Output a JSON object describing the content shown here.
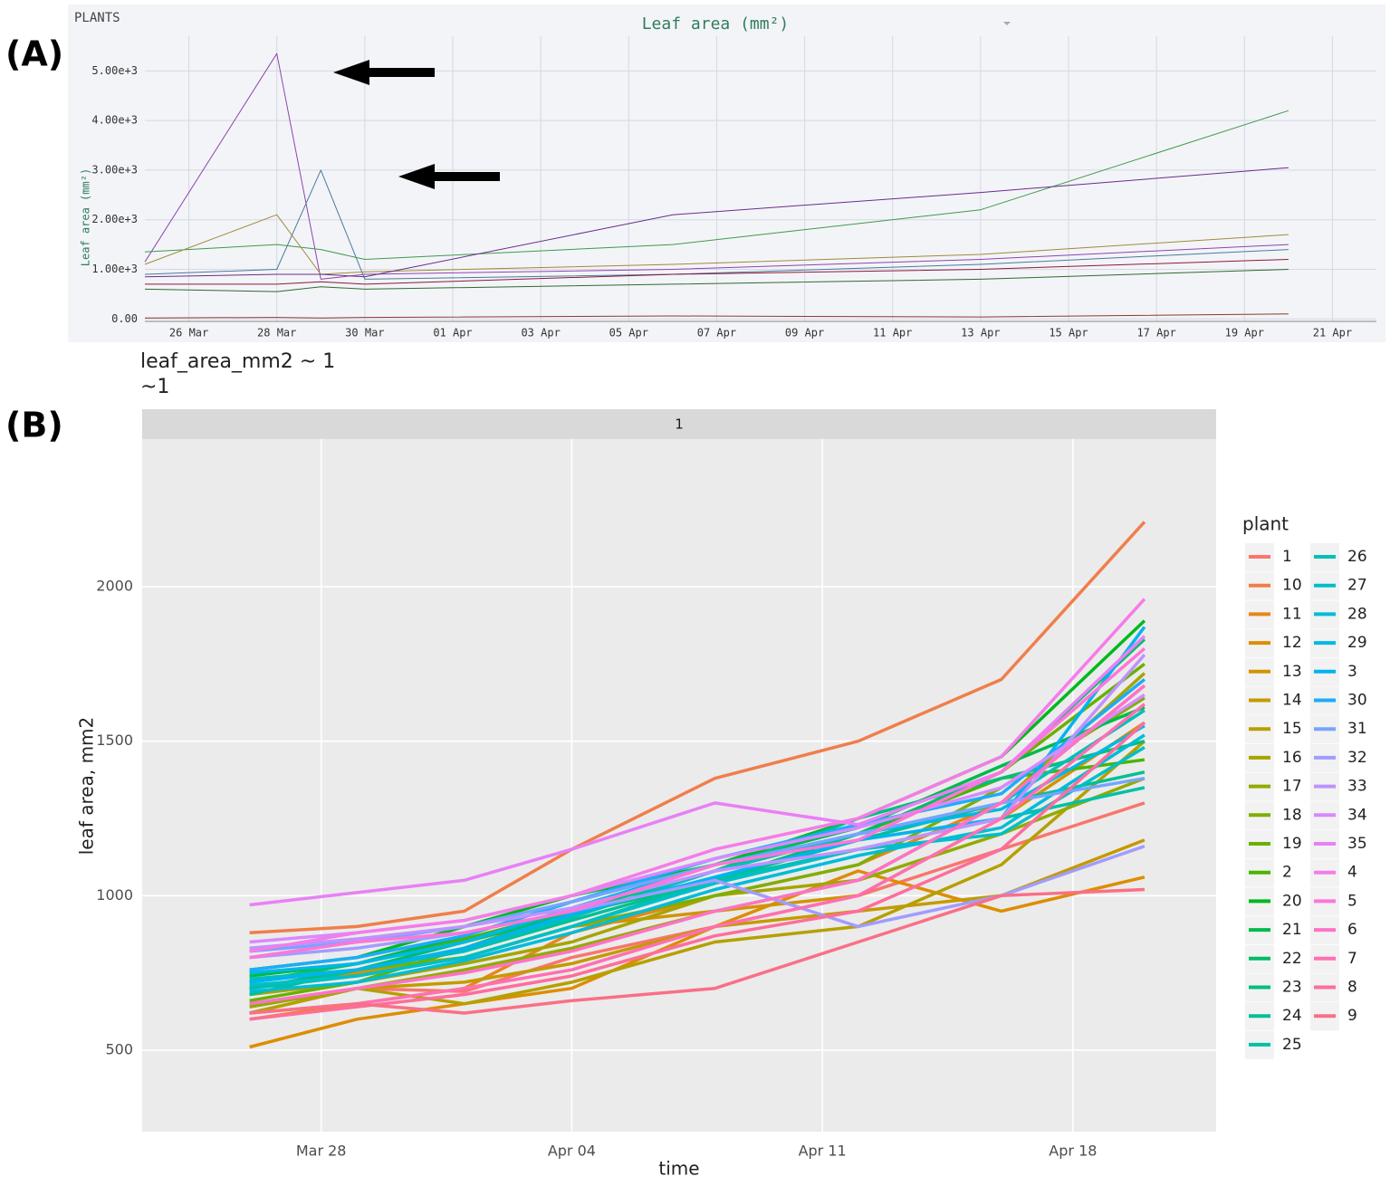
{
  "chart_data": [
    {
      "type": "line",
      "panel_label": "(A)",
      "selector_label": "PLANTS",
      "title": "Leaf area (mm²)",
      "y_label": "Leaf area (mm²)",
      "x": [
        "25 Mar",
        "28 Mar",
        "29 Mar",
        "30 Mar",
        "06 Apr",
        "13 Apr",
        "20 Apr"
      ],
      "xlim": [
        "25 Mar",
        "22 Apr"
      ],
      "xticks": [
        "26 Mar",
        "28 Mar",
        "30 Mar",
        "01 Apr",
        "03 Apr",
        "05 Apr",
        "07 Apr",
        "09 Apr",
        "11 Apr",
        "13 Apr",
        "15 Apr",
        "17 Apr",
        "19 Apr",
        "21 Apr"
      ],
      "ylim": [
        -50,
        5700
      ],
      "yticks": [
        {
          "value": 0,
          "label": "0.00"
        },
        {
          "value": 1000,
          "label": "1.00e+3"
        },
        {
          "value": 2000,
          "label": "2.00e+3"
        },
        {
          "value": 3000,
          "label": "3.00e+3"
        },
        {
          "value": 4000,
          "label": "4.00e+3"
        },
        {
          "value": 5000,
          "label": "5.00e+3"
        }
      ],
      "grid": true,
      "series": [
        {
          "color": "#8e44ad",
          "values": [
            1150,
            5350,
            800,
            900,
            1000,
            1200,
            1500
          ]
        },
        {
          "color": "#4a7a9b",
          "values": [
            900,
            1000,
            3000,
            800,
            900,
            1100,
            1400
          ]
        },
        {
          "color": "#3f9a4a",
          "values": [
            1350,
            1500,
            1400,
            1200,
            1500,
            2200,
            4200
          ]
        },
        {
          "color": "#a08a3a",
          "values": [
            1100,
            2100,
            900,
            950,
            1100,
            1300,
            1700
          ]
        },
        {
          "color": "#8b1a3a",
          "values": [
            700,
            700,
            750,
            700,
            900,
            1000,
            1200
          ]
        },
        {
          "color": "#2e6b2e",
          "values": [
            600,
            550,
            650,
            600,
            700,
            800,
            1000
          ]
        },
        {
          "color": "#6a2c8c",
          "values": [
            850,
            900,
            900,
            850,
            2100,
            2550,
            3050
          ]
        },
        {
          "color": "#8b3a2a",
          "values": [
            20,
            30,
            20,
            30,
            60,
            40,
            100
          ]
        }
      ]
    },
    {
      "type": "line",
      "panel_label": "(B)",
      "title": "leaf_area_mm2 ~ 1",
      "subtitle": "~1",
      "facet": "1",
      "x_label": "time",
      "y_label": "leaf area, mm2",
      "legend_title": "plant",
      "x": [
        "Mar 26",
        "Mar 29",
        "Apr 01",
        "Apr 04",
        "Apr 08",
        "Apr 12",
        "Apr 16",
        "Apr 20"
      ],
      "xlim": [
        "Mar 23",
        "Apr 22"
      ],
      "xticks": [
        "Mar 28",
        "Apr 04",
        "Apr 11",
        "Apr 18"
      ],
      "ylim": [
        236,
        2478
      ],
      "yticks": [
        500,
        1000,
        1500,
        2000
      ],
      "grid": true,
      "series": [
        {
          "name": "1",
          "color": "#F8766D",
          "values": [
            620,
            700,
            690,
            800,
            900,
            1000,
            1150,
            1300
          ]
        },
        {
          "name": "10",
          "color": "#F07E4B",
          "values": [
            880,
            900,
            950,
            1150,
            1380,
            1500,
            1700,
            2210
          ]
        },
        {
          "name": "11",
          "color": "#E7861B",
          "values": [
            600,
            650,
            700,
            880,
            1000,
            1100,
            1300,
            1680
          ]
        },
        {
          "name": "12",
          "color": "#DD8D00",
          "values": [
            510,
            600,
            650,
            700,
            900,
            1080,
            950,
            1060
          ]
        },
        {
          "name": "13",
          "color": "#D19400",
          "values": [
            700,
            750,
            800,
            900,
            950,
            1000,
            1250,
            1560
          ]
        },
        {
          "name": "14",
          "color": "#C49A00",
          "values": [
            650,
            700,
            720,
            780,
            900,
            950,
            1000,
            1180
          ]
        },
        {
          "name": "15",
          "color": "#B5A000",
          "values": [
            620,
            700,
            650,
            720,
            850,
            900,
            1100,
            1500
          ]
        },
        {
          "name": "16",
          "color": "#A5A500",
          "values": [
            680,
            720,
            780,
            850,
            1000,
            1050,
            1300,
            1720
          ]
        },
        {
          "name": "17",
          "color": "#93AA00",
          "values": [
            640,
            700,
            760,
            830,
            950,
            1050,
            1200,
            1380
          ]
        },
        {
          "name": "18",
          "color": "#7FAE00",
          "values": [
            700,
            760,
            800,
            900,
            1000,
            1100,
            1350,
            1640
          ]
        },
        {
          "name": "19",
          "color": "#68B100",
          "values": [
            660,
            720,
            830,
            950,
            1050,
            1200,
            1400,
            1750
          ]
        },
        {
          "name": "2",
          "color": "#49B500",
          "values": [
            720,
            780,
            860,
            950,
            1080,
            1200,
            1380,
            1440
          ]
        },
        {
          "name": "20",
          "color": "#00B81F",
          "values": [
            760,
            800,
            900,
            1000,
            1100,
            1250,
            1450,
            1890
          ]
        },
        {
          "name": "21",
          "color": "#00BA4A",
          "values": [
            740,
            780,
            870,
            980,
            1100,
            1220,
            1420,
            1610
          ]
        },
        {
          "name": "22",
          "color": "#00BC66",
          "values": [
            700,
            760,
            850,
            940,
            1050,
            1200,
            1400,
            1830
          ]
        },
        {
          "name": "23",
          "color": "#00BE7D",
          "values": [
            720,
            780,
            850,
            950,
            1080,
            1250,
            1380,
            1500
          ]
        },
        {
          "name": "24",
          "color": "#00C092",
          "values": [
            680,
            760,
            820,
            920,
            1050,
            1180,
            1300,
            1400
          ]
        },
        {
          "name": "25",
          "color": "#00C0A6",
          "values": [
            700,
            740,
            800,
            900,
            1050,
            1150,
            1250,
            1350
          ]
        },
        {
          "name": "26",
          "color": "#00C0B8",
          "values": [
            730,
            760,
            820,
            930,
            1080,
            1200,
            1300,
            1600
          ]
        },
        {
          "name": "27",
          "color": "#00BFC9",
          "values": [
            710,
            740,
            800,
            900,
            1040,
            1150,
            1200,
            1480
          ]
        },
        {
          "name": "28",
          "color": "#00BCD8",
          "values": [
            690,
            720,
            790,
            880,
            1020,
            1130,
            1220,
            1520
          ]
        },
        {
          "name": "29",
          "color": "#00B8E5",
          "values": [
            750,
            780,
            850,
            960,
            1100,
            1200,
            1280,
            1550
          ]
        },
        {
          "name": "3",
          "color": "#00B3F1",
          "values": [
            720,
            760,
            830,
            940,
            1060,
            1180,
            1250,
            1870
          ]
        },
        {
          "name": "30",
          "color": "#1CACFA",
          "values": [
            760,
            800,
            870,
            980,
            1120,
            1230,
            1330,
            1700
          ]
        },
        {
          "name": "31",
          "color": "#77A4FF",
          "values": [
            820,
            850,
            900,
            980,
            1100,
            1200,
            1300,
            1380
          ]
        },
        {
          "name": "32",
          "color": "#A19CFF",
          "values": [
            800,
            830,
            880,
            950,
            1050,
            900,
            1000,
            1160
          ]
        },
        {
          "name": "33",
          "color": "#BF92FF",
          "values": [
            830,
            860,
            900,
            960,
            1080,
            1150,
            1250,
            1780
          ]
        },
        {
          "name": "34",
          "color": "#D789FF",
          "values": [
            850,
            880,
            920,
            1000,
            1120,
            1220,
            1350,
            1650
          ]
        },
        {
          "name": "35",
          "color": "#E880F6",
          "values": [
            970,
            1010,
            1050,
            1150,
            1300,
            1230,
            1400,
            1840
          ]
        },
        {
          "name": "4",
          "color": "#F57CE9",
          "values": [
            820,
            880,
            920,
            1000,
            1150,
            1250,
            1450,
            1960
          ]
        },
        {
          "name": "5",
          "color": "#FD76D8",
          "values": [
            800,
            850,
            880,
            950,
            1100,
            1180,
            1400,
            1800
          ]
        },
        {
          "name": "6",
          "color": "#FF72C6",
          "values": [
            650,
            700,
            750,
            820,
            950,
            1050,
            1300,
            1680
          ]
        },
        {
          "name": "7",
          "color": "#FF6FB2",
          "values": [
            620,
            650,
            700,
            760,
            900,
            1000,
            1250,
            1620
          ]
        },
        {
          "name": "8",
          "color": "#FE6D9C",
          "values": [
            600,
            640,
            680,
            740,
            870,
            950,
            1150,
            1560
          ]
        },
        {
          "name": "9",
          "color": "#F97086",
          "values": [
            620,
            650,
            620,
            660,
            700,
            850,
            1000,
            1020
          ]
        }
      ]
    }
  ]
}
